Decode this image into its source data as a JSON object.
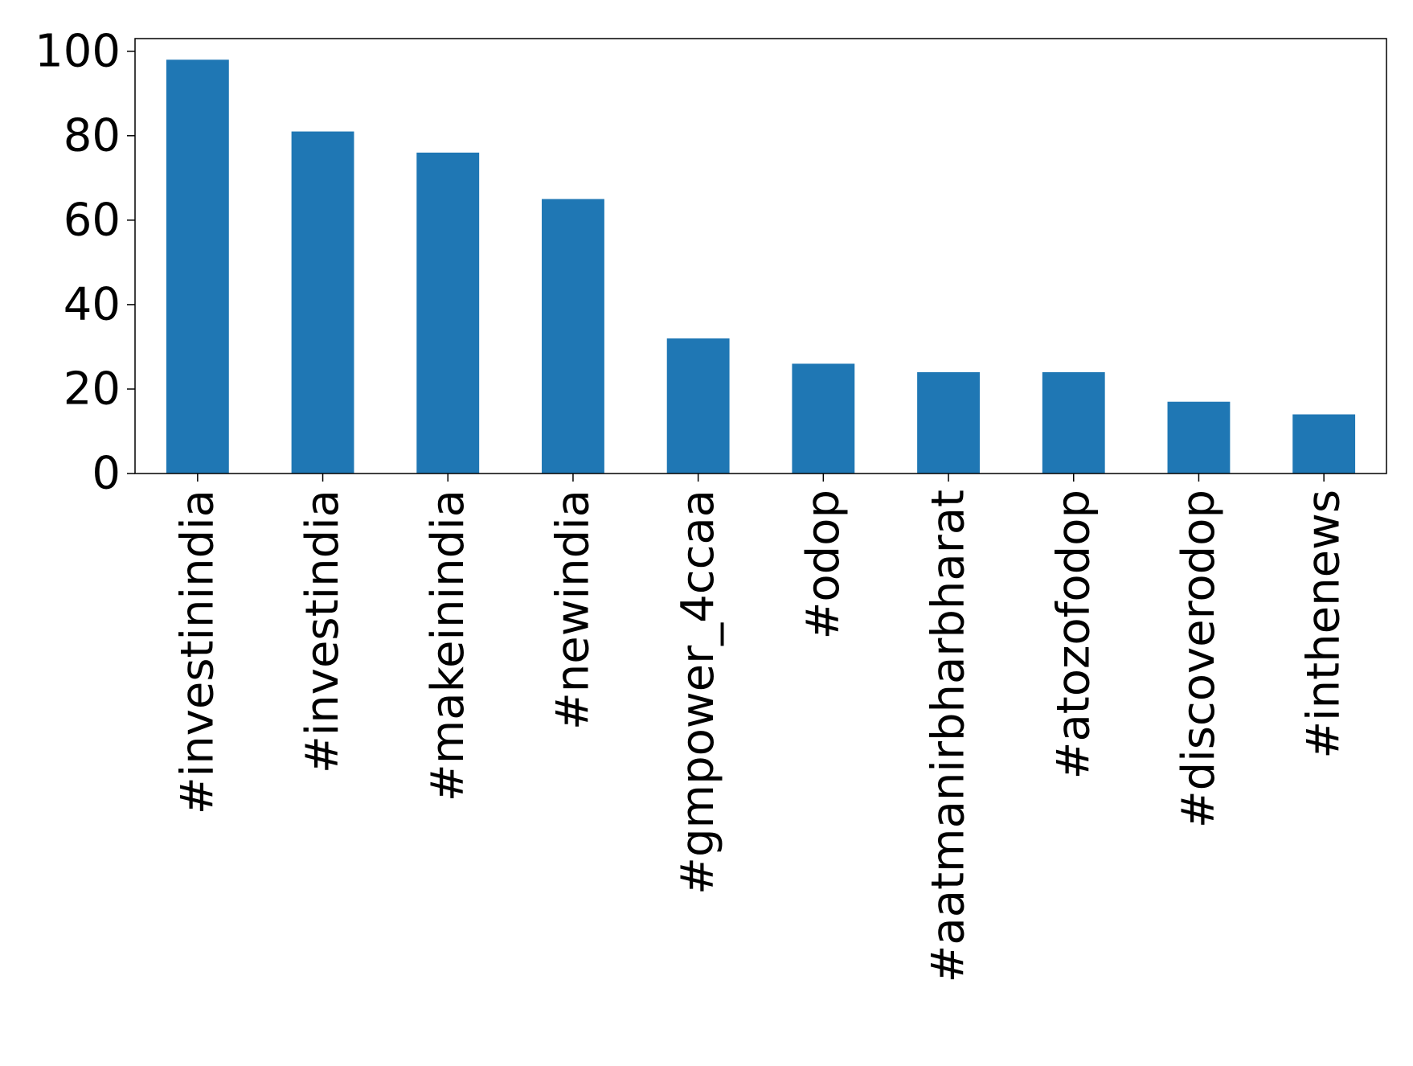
{
  "chart_data": {
    "type": "bar",
    "title": "",
    "xlabel": "",
    "ylabel": "",
    "categories": [
      "#investinindia",
      "#investindia",
      "#makeinindia",
      "#newindia",
      "#gmpower_4ccaa",
      "#odop",
      "#aatmanirbharbharat",
      "#atozofodop",
      "#discoverodop",
      "#inthenews"
    ],
    "values": [
      98,
      81,
      76,
      65,
      32,
      26,
      24,
      24,
      17,
      14
    ],
    "ylim": [
      0,
      103
    ],
    "yticks": [
      "0",
      "20",
      "40",
      "60",
      "80",
      "100"
    ],
    "grid": false,
    "legend": "none",
    "bar_color": "#1f77b4"
  }
}
